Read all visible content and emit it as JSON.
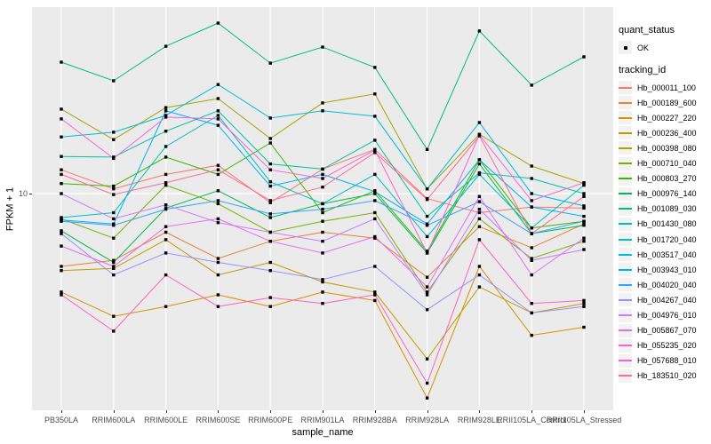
{
  "chart_data": {
    "type": "line",
    "title": "",
    "xlabel": "sample_name",
    "ylabel": "FPKM + 1",
    "yscale": "log10",
    "y_ticks": [
      "10"
    ],
    "y_range_approx": [
      1.2,
      59
    ],
    "grid": true,
    "panel_bg": "#EBEBEB",
    "grid_color": "#FFFFFF",
    "point_color": "#000000",
    "categories": [
      "PB350LA",
      "RRIM600LA",
      "RRIM600LE",
      "RRIM600SE",
      "RRIM600PE",
      "RRIM901LA",
      "RRIM928BA",
      "RRIM928LA",
      "RRIM928LE",
      "RRII105LA_Control",
      "RRII105LA_Stressed"
    ],
    "legend": {
      "position": "right",
      "quant_status_title": "quant_status",
      "quant_status_items": [
        "OK"
      ],
      "tracking_title": "tracking_id"
    },
    "series": [
      {
        "name": "Hb_000011_100",
        "color": "#F8766D",
        "values": [
          12.8,
          10.5,
          12.2,
          13.4,
          9.1,
          12.9,
          15.8,
          9.5,
          8.2,
          8.7,
          8.6
        ]
      },
      {
        "name": "Hb_000189_600",
        "color": "#EA8331",
        "values": [
          4.7,
          5.0,
          6.7,
          5.1,
          6.1,
          6.7,
          6.3,
          4.2,
          7.1,
          5.7,
          7.3
        ]
      },
      {
        "name": "Hb_000227_220",
        "color": "#D89000",
        "values": [
          3.6,
          2.8,
          3.1,
          3.5,
          3.1,
          3.6,
          3.3,
          1.2,
          4.7,
          2.3,
          2.5
        ]
      },
      {
        "name": "Hb_000236_400",
        "color": "#C09B00",
        "values": [
          4.5,
          4.6,
          6.2,
          4.3,
          4.9,
          4.0,
          3.6,
          1.8,
          3.8,
          2.9,
          3.2
        ]
      },
      {
        "name": "Hb_000398_080",
        "color": "#A3A500",
        "values": [
          24.0,
          17.5,
          24.4,
          26.8,
          17.7,
          25.6,
          28.1,
          10.5,
          18.5,
          13.3,
          11.1
        ]
      },
      {
        "name": "Hb_000710_040",
        "color": "#7CAE00",
        "values": [
          7.7,
          6.3,
          10.9,
          9.0,
          6.7,
          7.5,
          8.2,
          3.6,
          7.7,
          5.1,
          6.1
        ]
      },
      {
        "name": "Hb_000803_270",
        "color": "#39B600",
        "values": [
          11.1,
          10.8,
          14.6,
          12.2,
          16.9,
          8.2,
          10.3,
          5.5,
          14.2,
          7.0,
          7.5
        ]
      },
      {
        "name": "Hb_000976_140",
        "color": "#00BB4E",
        "values": [
          6.8,
          4.9,
          8.6,
          10.3,
          7.8,
          9.0,
          10.0,
          5.4,
          13.6,
          6.6,
          7.2
        ]
      },
      {
        "name": "Hb_001089_030",
        "color": "#00BF7D",
        "values": [
          39.1,
          32.2,
          46.1,
          58.6,
          38.7,
          45.7,
          37.0,
          15.8,
          54.0,
          30.8,
          41.3
        ]
      },
      {
        "name": "Hb_001430_080",
        "color": "#00C1A3",
        "values": [
          14.7,
          14.6,
          19.1,
          23.6,
          13.6,
          12.9,
          17.4,
          7.9,
          12.4,
          11.7,
          10.0
        ]
      },
      {
        "name": "Hb_001720_040",
        "color": "#00BFC4",
        "values": [
          7.8,
          8.2,
          16.3,
          22.5,
          11.3,
          9.0,
          12.2,
          6.4,
          12.2,
          7.0,
          10.9
        ]
      },
      {
        "name": "Hb_003517_040",
        "color": "#00BADE",
        "values": [
          18.0,
          18.9,
          22.5,
          31.0,
          21.9,
          23.6,
          22.3,
          10.5,
          20.9,
          10.0,
          8.8
        ]
      },
      {
        "name": "Hb_003943_010",
        "color": "#00B0F6",
        "values": [
          7.6,
          7.3,
          23.6,
          20.3,
          10.8,
          12.2,
          10.2,
          7.3,
          14.2,
          8.7,
          7.9
        ]
      },
      {
        "name": "Hb_004020_040",
        "color": "#35A2FF",
        "values": [
          7.5,
          7.2,
          8.5,
          9.3,
          8.1,
          8.5,
          9.3,
          7.2,
          9.2,
          6.6,
          7.5
        ]
      },
      {
        "name": "Hb_004267_040",
        "color": "#9590FF",
        "values": [
          6.6,
          4.3,
          5.4,
          4.9,
          4.5,
          4.1,
          4.7,
          3.0,
          4.3,
          2.9,
          3.1
        ]
      },
      {
        "name": "Hb_004976_010",
        "color": "#C77CFF",
        "values": [
          10.0,
          7.7,
          8.9,
          7.4,
          6.7,
          6.1,
          7.7,
          3.5,
          8.5,
          5.0,
          5.6
        ]
      },
      {
        "name": "Hb_005867_070",
        "color": "#E76BF3",
        "values": [
          5.8,
          4.7,
          7.1,
          7.7,
          6.1,
          5.4,
          6.4,
          3.8,
          9.7,
          4.3,
          6.3
        ]
      },
      {
        "name": "Hb_055235_020",
        "color": "#FA62DB",
        "values": [
          21.7,
          14.4,
          22.1,
          21.7,
          12.8,
          11.7,
          15.7,
          5.4,
          18.4,
          9.3,
          11.2
        ]
      },
      {
        "name": "Hb_057688_010",
        "color": "#FF62BC",
        "values": [
          3.5,
          2.4,
          4.3,
          3.1,
          3.4,
          3.2,
          3.5,
          1.4,
          6.2,
          3.2,
          3.3
        ]
      },
      {
        "name": "Hb_183510_020",
        "color": "#FF6A98",
        "values": [
          12.2,
          9.9,
          11.2,
          12.8,
          9.3,
          10.7,
          15.3,
          9.4,
          18.2,
          6.6,
          9.7
        ]
      }
    ]
  }
}
